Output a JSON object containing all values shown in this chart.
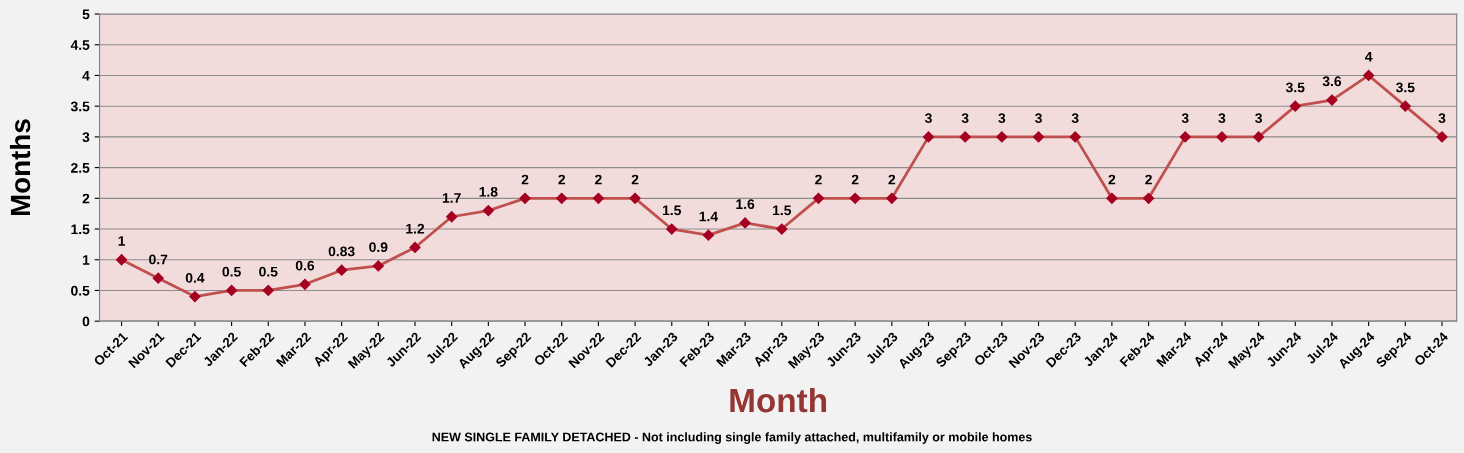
{
  "chart_data": {
    "type": "line",
    "categories": [
      "Oct-21",
      "Nov-21",
      "Dec-21",
      "Jan-22",
      "Feb-22",
      "Mar-22",
      "Apr-22",
      "May-22",
      "Jun-22",
      "Jul-22",
      "Aug-22",
      "Sep-22",
      "Oct-22",
      "Nov-22",
      "Dec-22",
      "Jan-23",
      "Feb-23",
      "Mar-23",
      "Apr-23",
      "May-23",
      "Jun-23",
      "Jul-23",
      "Aug-23",
      "Sep-23",
      "Oct-23",
      "Nov-23",
      "Dec-23",
      "Jan-24",
      "Feb-24",
      "Mar-24",
      "Apr-24",
      "May-24",
      "Jun-24",
      "Jul-24",
      "Aug-24",
      "Sep-24",
      "Oct-24"
    ],
    "series": [
      {
        "color": "#c0504d",
        "values": [
          1,
          0.7,
          0.4,
          0.5,
          0.5,
          0.6,
          0.83,
          0.9,
          1.2,
          1.7,
          1.8,
          2,
          2,
          2,
          2,
          1.5,
          1.4,
          1.6,
          1.5,
          2,
          2,
          2,
          3,
          3,
          3,
          3,
          3,
          2,
          2,
          3,
          3,
          3,
          3.5,
          3.6,
          4,
          3.5,
          3
        ]
      }
    ],
    "xlabel": "Month",
    "ylabel": "Months",
    "annotations": [
      "NEW SINGLE FAMILY DETACHED - Not including single family attached, multifamily or mobile homes"
    ],
    "ylim": [
      0,
      5
    ],
    "yticks": [
      0,
      0.5,
      1,
      1.5,
      2,
      2.5,
      3,
      3.5,
      4,
      4.5,
      5
    ],
    "grid": "y",
    "marker": "diamond",
    "line_style": "solid",
    "data_labels": true,
    "legend": false
  }
}
